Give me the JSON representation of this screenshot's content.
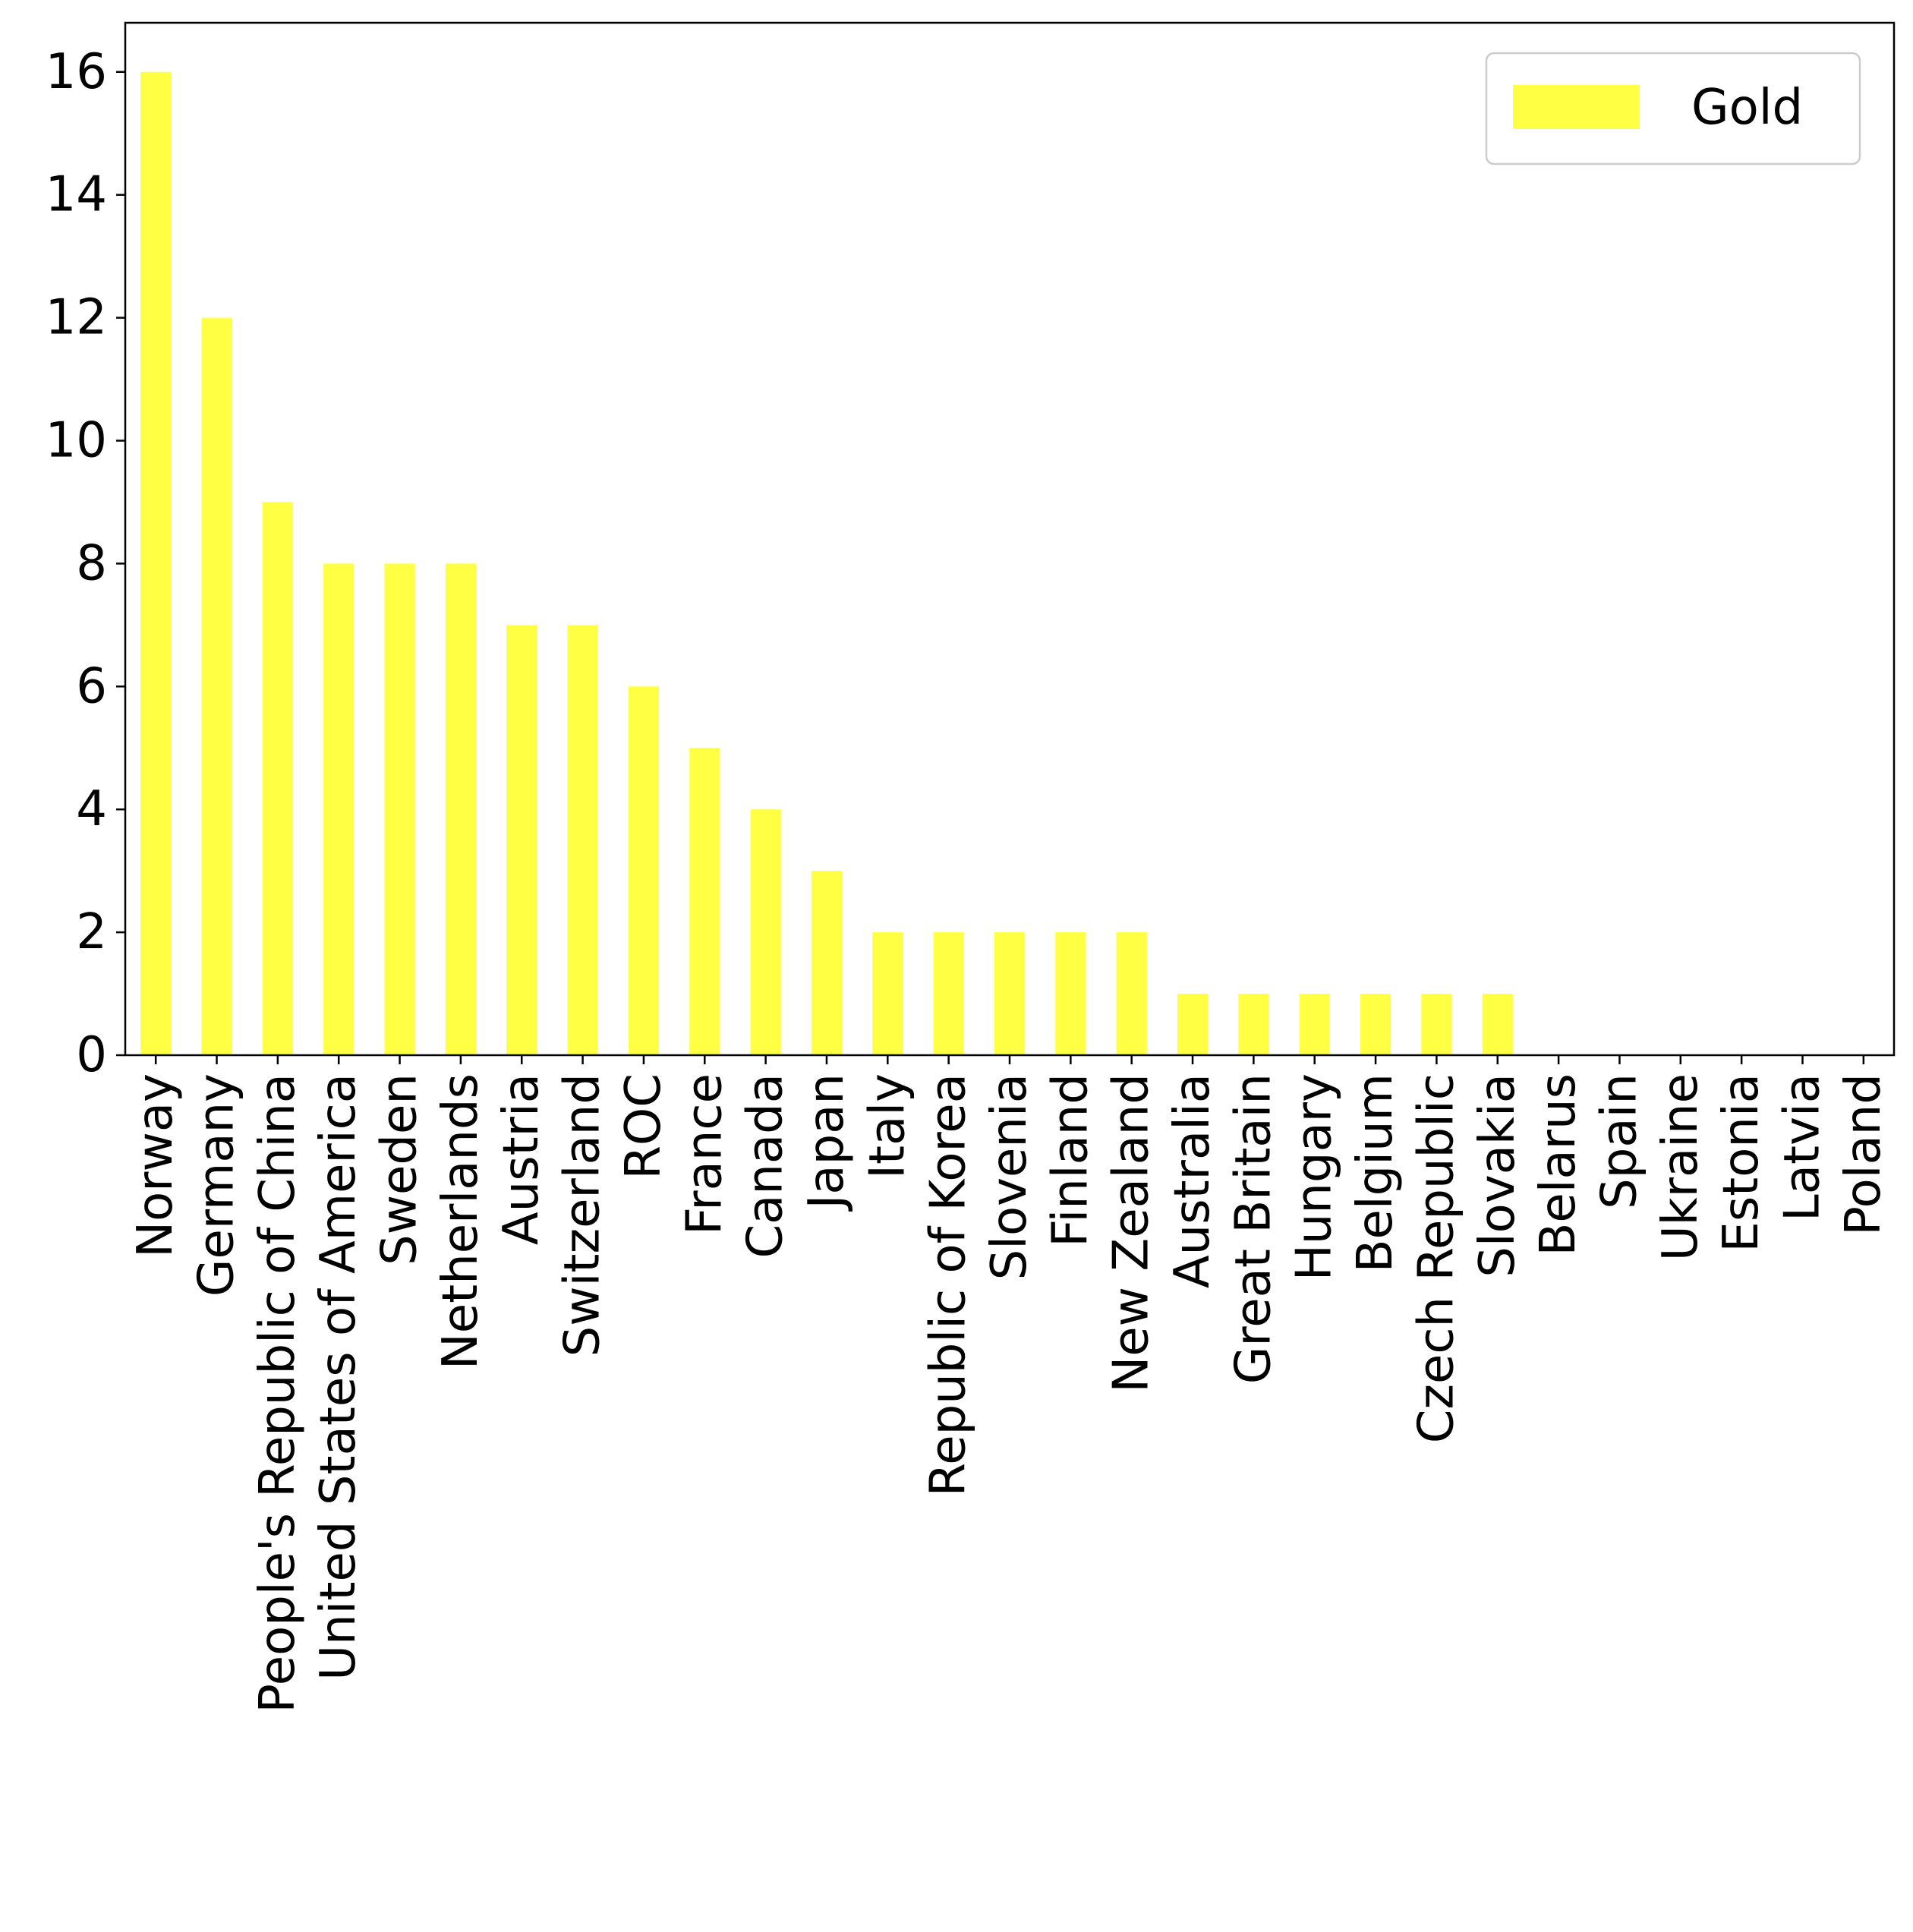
{
  "chart_data": {
    "type": "bar",
    "categories": [
      "Norway",
      "Germany",
      "People's Republic of China",
      "United States of America",
      "Sweden",
      "Netherlands",
      "Austria",
      "Switzerland",
      "ROC",
      "France",
      "Canada",
      "Japan",
      "Italy",
      "Republic of Korea",
      "Slovenia",
      "Finland",
      "New Zealand",
      "Australia",
      "Great Britain",
      "Hungary",
      "Belgium",
      "Czech Republic",
      "Slovakia",
      "Belarus",
      "Spain",
      "Ukraine",
      "Estonia",
      "Latvia",
      "Poland"
    ],
    "series": [
      {
        "name": "Gold",
        "color": "#ffff44",
        "values": [
          16,
          12,
          9,
          8,
          8,
          8,
          7,
          7,
          6,
          5,
          4,
          3,
          2,
          2,
          2,
          2,
          2,
          1,
          1,
          1,
          1,
          1,
          1,
          0,
          0,
          0,
          0,
          0,
          0
        ]
      }
    ],
    "yticks": [
      0,
      2,
      4,
      6,
      8,
      10,
      12,
      14,
      16
    ],
    "ylim": [
      0,
      16.8
    ],
    "grid": false,
    "legend_position": "top-right"
  }
}
